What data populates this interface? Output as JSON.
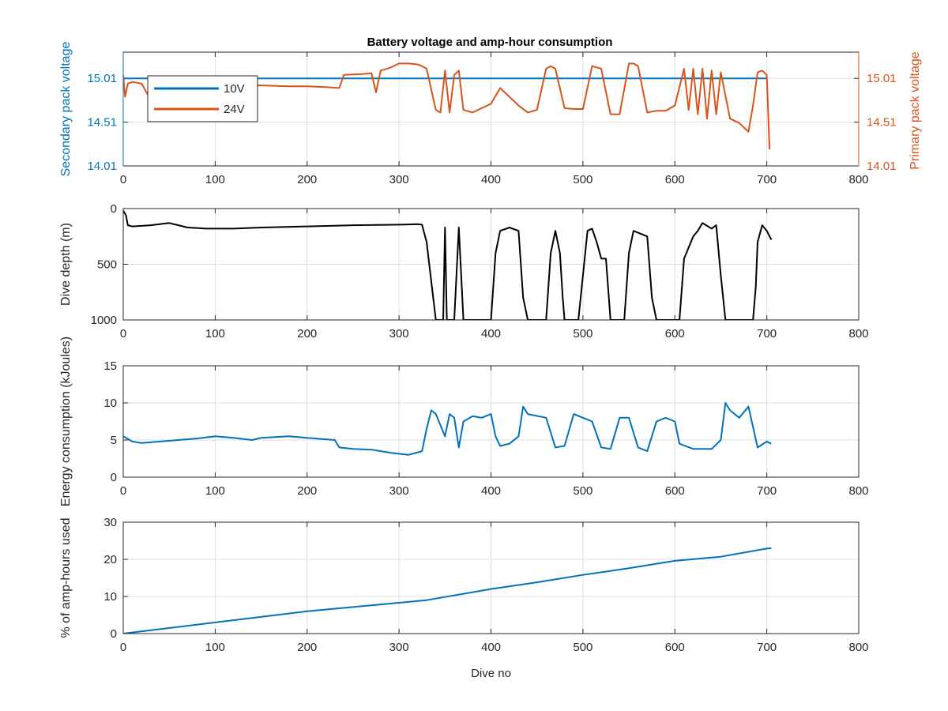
{
  "figure_title": "Battery voltage and amp-hour consumption",
  "colors": {
    "blue": "#0072BD",
    "orange": "#D95319",
    "black": "#000000",
    "grid": "#dfdfdf",
    "axis": "#262626"
  },
  "chart_data": [
    {
      "id": "voltage",
      "type": "line",
      "title": "Battery voltage and amp-hour consumption",
      "xlabel": "",
      "ylabel_left": "Secondary pack voltage",
      "ylabel_right": "Primary pack voltage",
      "xlim": [
        0,
        800
      ],
      "x_ticks": [
        0,
        100,
        200,
        300,
        400,
        500,
        600,
        700,
        800
      ],
      "ylim_left": [
        14.01,
        15.31
      ],
      "y_ticks_left": [
        14.01,
        14.51,
        15.01
      ],
      "ylim_right": [
        14.01,
        15.31
      ],
      "y_ticks_right": [
        14.01,
        14.51,
        15.01
      ],
      "legend_position": "top-left",
      "grid": true,
      "series": [
        {
          "name": "10V",
          "axis": "left",
          "color": "#0072BD",
          "x": [
            0,
            100,
            200,
            300,
            400,
            500,
            600,
            700
          ],
          "y": [
            15.01,
            15.01,
            15.01,
            15.01,
            15.01,
            15.01,
            15.01,
            15.01
          ]
        },
        {
          "name": "24V",
          "axis": "right",
          "color": "#D95319",
          "x": [
            0,
            2,
            5,
            10,
            20,
            28,
            30,
            40,
            50,
            60,
            80,
            100,
            120,
            150,
            180,
            200,
            220,
            235,
            240,
            260,
            270,
            275,
            280,
            290,
            300,
            310,
            320,
            325,
            330,
            340,
            345,
            350,
            355,
            360,
            365,
            370,
            380,
            400,
            410,
            420,
            430,
            440,
            450,
            460,
            465,
            470,
            480,
            490,
            500,
            510,
            520,
            530,
            540,
            550,
            555,
            560,
            570,
            580,
            590,
            600,
            610,
            615,
            620,
            625,
            630,
            635,
            640,
            645,
            650,
            660,
            670,
            680,
            685,
            690,
            695,
            700,
            703
          ],
          "y": [
            15.05,
            14.8,
            14.95,
            14.97,
            14.95,
            14.8,
            14.98,
            14.98,
            14.97,
            14.95,
            14.95,
            14.95,
            14.94,
            14.93,
            14.92,
            14.92,
            14.91,
            14.9,
            15.05,
            15.06,
            15.07,
            14.85,
            15.1,
            15.13,
            15.18,
            15.18,
            15.17,
            15.15,
            15.12,
            14.65,
            14.62,
            15.1,
            14.62,
            15.05,
            15.1,
            14.65,
            14.62,
            14.72,
            14.9,
            14.8,
            14.7,
            14.62,
            14.65,
            15.12,
            15.15,
            15.12,
            14.67,
            14.66,
            14.66,
            15.15,
            15.12,
            14.6,
            14.6,
            15.18,
            15.18,
            15.15,
            14.62,
            14.64,
            14.64,
            14.7,
            15.12,
            14.65,
            15.12,
            14.6,
            15.12,
            14.55,
            15.1,
            14.6,
            15.08,
            14.55,
            14.5,
            14.4,
            14.7,
            15.08,
            15.1,
            15.05,
            14.2
          ]
        }
      ]
    },
    {
      "id": "depth",
      "type": "line",
      "title": "",
      "xlabel": "",
      "ylabel": "Dive depth (m)",
      "xlim": [
        0,
        800
      ],
      "x_ticks": [
        0,
        100,
        200,
        300,
        400,
        500,
        600,
        700,
        800
      ],
      "ylim": [
        0,
        1000
      ],
      "y_reversed": true,
      "y_ticks": [
        0,
        500,
        1000
      ],
      "grid": true,
      "series": [
        {
          "color": "#000000",
          "x": [
            0,
            3,
            5,
            10,
            30,
            50,
            60,
            70,
            90,
            120,
            150,
            200,
            250,
            300,
            320,
            325,
            330,
            340,
            342,
            348,
            350,
            352,
            354,
            360,
            365,
            370,
            375,
            395,
            398,
            400,
            405,
            410,
            420,
            430,
            435,
            440,
            455,
            460,
            465,
            470,
            475,
            478,
            480,
            490,
            495,
            500,
            505,
            510,
            515,
            520,
            525,
            530,
            545,
            550,
            555,
            570,
            575,
            580,
            600,
            605,
            610,
            620,
            625,
            630,
            640,
            645,
            650,
            655,
            660,
            670,
            685,
            688,
            690,
            695,
            700,
            705
          ],
          "y": [
            20,
            60,
            150,
            160,
            150,
            130,
            150,
            170,
            180,
            180,
            170,
            160,
            150,
            145,
            140,
            145,
            300,
            1000,
            1000,
            1000,
            170,
            1000,
            1000,
            1000,
            170,
            1000,
            1000,
            1000,
            1000,
            1000,
            400,
            200,
            170,
            200,
            800,
            1000,
            1000,
            1000,
            400,
            200,
            400,
            800,
            1000,
            1000,
            1000,
            600,
            200,
            180,
            300,
            450,
            450,
            1000,
            1000,
            400,
            200,
            250,
            800,
            1000,
            1000,
            1000,
            450,
            250,
            200,
            130,
            180,
            150,
            600,
            1000,
            1000,
            1000,
            1000,
            700,
            300,
            150,
            200,
            280
          ]
        }
      ]
    },
    {
      "id": "energy",
      "type": "line",
      "title": "",
      "xlabel": "",
      "ylabel": "Energy consumption (kJoules)",
      "xlim": [
        0,
        800
      ],
      "x_ticks": [
        0,
        100,
        200,
        300,
        400,
        500,
        600,
        700,
        800
      ],
      "ylim": [
        0,
        15
      ],
      "y_ticks": [
        0,
        5,
        10,
        15
      ],
      "grid": true,
      "series": [
        {
          "color": "#0072BD",
          "x": [
            0,
            10,
            20,
            40,
            60,
            80,
            100,
            120,
            140,
            150,
            180,
            200,
            230,
            235,
            250,
            270,
            290,
            310,
            325,
            330,
            335,
            340,
            350,
            355,
            360,
            365,
            370,
            380,
            390,
            400,
            405,
            410,
            420,
            430,
            435,
            440,
            460,
            470,
            480,
            490,
            500,
            510,
            520,
            530,
            540,
            550,
            560,
            570,
            580,
            590,
            600,
            605,
            620,
            640,
            650,
            655,
            660,
            670,
            680,
            690,
            700,
            705
          ],
          "y": [
            5.5,
            4.8,
            4.6,
            4.8,
            5.0,
            5.2,
            5.5,
            5.3,
            5.0,
            5.3,
            5.5,
            5.3,
            5.0,
            4.0,
            3.8,
            3.7,
            3.3,
            3.0,
            3.5,
            6.5,
            9.0,
            8.5,
            5.5,
            8.5,
            8.0,
            4.0,
            7.5,
            8.2,
            8.0,
            8.5,
            5.5,
            4.2,
            4.5,
            5.5,
            9.5,
            8.5,
            8.0,
            4.0,
            4.2,
            8.5,
            8.0,
            7.5,
            4.0,
            3.8,
            8.0,
            8.0,
            4.0,
            3.5,
            7.5,
            8.0,
            7.5,
            4.5,
            3.8,
            3.8,
            5.0,
            10.0,
            9.0,
            8.0,
            9.5,
            4.0,
            4.8,
            4.5
          ]
        }
      ]
    },
    {
      "id": "amphours",
      "type": "line",
      "title": "",
      "xlabel": "Dive no",
      "ylabel": "% of amp-hours used",
      "xlim": [
        0,
        800
      ],
      "x_ticks": [
        0,
        100,
        200,
        300,
        400,
        500,
        600,
        700,
        800
      ],
      "ylim": [
        0,
        30
      ],
      "y_ticks": [
        0,
        10,
        20,
        30
      ],
      "grid": true,
      "series": [
        {
          "color": "#0072BD",
          "x": [
            0,
            100,
            200,
            300,
            330,
            400,
            450,
            500,
            550,
            600,
            650,
            700,
            705
          ],
          "y": [
            0,
            3.0,
            6.0,
            8.3,
            9.0,
            12.0,
            13.8,
            15.8,
            17.6,
            19.6,
            20.7,
            22.9,
            23.0
          ]
        }
      ]
    }
  ]
}
